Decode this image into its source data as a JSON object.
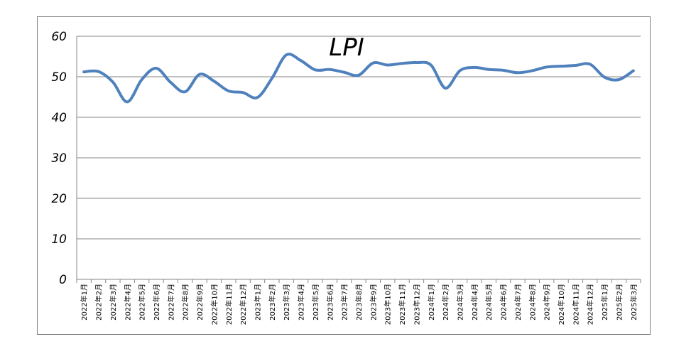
{
  "chart_data": {
    "type": "line",
    "title": "LPI",
    "xlabel": "",
    "ylabel": "",
    "ylim": [
      0,
      60
    ],
    "yticks": [
      "0",
      "10",
      "20",
      "30",
      "40",
      "50",
      "60"
    ],
    "grid": true,
    "categories": [
      "2022年1月",
      "2022年2月",
      "2022年3月",
      "2022年4月",
      "2022年5月",
      "2022年6月",
      "2022年7月",
      "2022年8月",
      "2022年9月",
      "2022年10月",
      "2022年11月",
      "2022年12月",
      "2023年1月",
      "2023年2月",
      "2023年3月",
      "2023年4月",
      "2023年5月",
      "2023年6月",
      "2023年7月",
      "2023年8月",
      "2023年9月",
      "2023年10月",
      "2023年11月",
      "2023年12月",
      "2024年1月",
      "2024年2月",
      "2024年3月",
      "2024年4月",
      "2024年5月",
      "2024年6月",
      "2024年7月",
      "2024年8月",
      "2024年9月",
      "2024年10月",
      "2024年11月",
      "2024年12月",
      "2025年1月",
      "2025年2月",
      "2025年3月"
    ],
    "series": [
      {
        "values": [
          51.2,
          51.3,
          48.7,
          43.8,
          49.3,
          52.1,
          48.6,
          46.3,
          50.6,
          48.9,
          46.5,
          46.1,
          44.9,
          49.6,
          55.4,
          54.0,
          51.7,
          51.8,
          51.1,
          50.4,
          53.4,
          52.9,
          53.3,
          53.5,
          52.9,
          47.2,
          51.5,
          52.3,
          51.8,
          51.6,
          51.0,
          51.5,
          52.4,
          52.6,
          52.8,
          53.1,
          49.9,
          49.3,
          51.5
        ],
        "color": "#4f81bd"
      }
    ]
  }
}
